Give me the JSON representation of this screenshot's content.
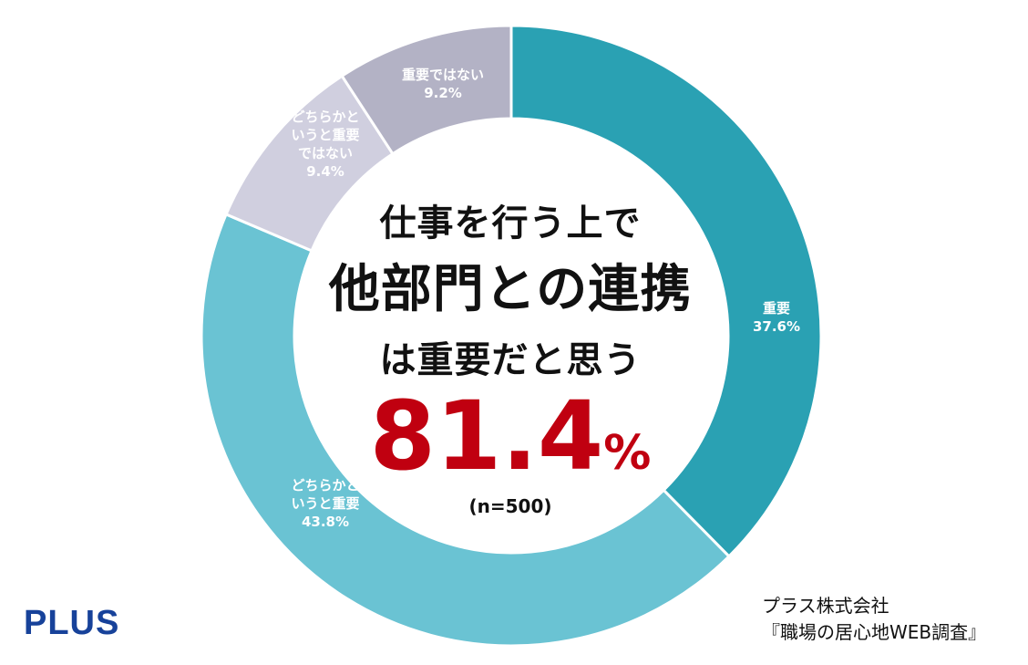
{
  "chart_data": {
    "type": "pie",
    "variant": "donut",
    "slices": [
      {
        "label": [
          "重要"
        ],
        "pct_text": "37.6%",
        "value": 37.6,
        "color": "#2aa1b3"
      },
      {
        "label": [
          "どちらかと",
          "いうと重要"
        ],
        "pct_text": "43.8%",
        "value": 43.8,
        "color": "#6ac3d3"
      },
      {
        "label": [
          "どちらかと",
          "いうと重要",
          "ではない"
        ],
        "pct_text": "9.4%",
        "value": 9.4,
        "color": "#d0cfdf"
      },
      {
        "label": [
          "重要ではない"
        ],
        "pct_text": "9.2%",
        "value": 9.2,
        "color": "#b3b2c5"
      }
    ]
  },
  "center": {
    "line1": "仕事を行う上で",
    "line2": "他部門との連携",
    "line3": "は重要だと思う",
    "total_value": "81.4",
    "total_sign": "%",
    "n": "(n=500)"
  },
  "brand": "PLUS",
  "source": {
    "company": "プラス株式会社",
    "survey": "『職場の居心地WEB調査』"
  }
}
